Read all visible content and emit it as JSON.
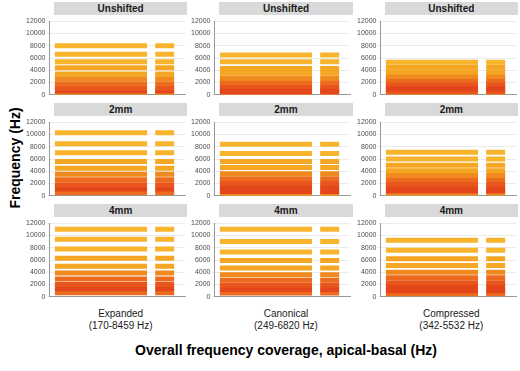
{
  "y_label": "Frequency (Hz)",
  "x_label": "Overall frequency coverage, apical-basal (Hz)",
  "column_labels": [
    [
      "Expanded",
      "(170-8459 Hz)"
    ],
    [
      "Canonical",
      "(249-6820 Hz)"
    ],
    [
      "Compressed",
      "(342-5532 Hz)"
    ]
  ],
  "chart_data": [
    {
      "type": "line",
      "title": "Unshifted",
      "xlim": [
        0,
        1
      ],
      "ylim": [
        0,
        12000
      ],
      "yticks": [
        0,
        2000,
        4000,
        6000,
        8000,
        10000,
        12000
      ],
      "grid": true,
      "tick_labels": "y",
      "x": [
        0.04,
        0.72,
        null,
        0.78,
        0.92
      ],
      "series": [
        {
          "color": "#f7b42c",
          "values": [
            8000,
            8000,
            null,
            8000,
            8000
          ]
        },
        {
          "color": "#f7b42c",
          "values": [
            6600,
            6600,
            null,
            6600,
            6600
          ]
        },
        {
          "color": "#f7b42c",
          "values": [
            5400,
            5400,
            null,
            5400,
            5400
          ]
        },
        {
          "color": "#f5a623",
          "values": [
            4400,
            4400,
            null,
            4400,
            4400
          ]
        },
        {
          "color": "#f5a623",
          "values": [
            3400,
            3400,
            null,
            3400,
            3400
          ]
        },
        {
          "color": "#f08a1e",
          "values": [
            2600,
            2600,
            null,
            2600,
            2600
          ]
        },
        {
          "color": "#ec6b1e",
          "values": [
            1800,
            1800,
            null,
            1800,
            1800
          ]
        },
        {
          "color": "#e8561d",
          "values": [
            1100,
            1100,
            null,
            1100,
            1100
          ]
        },
        {
          "color": "#e4461c",
          "values": [
            600,
            600,
            null,
            600,
            600
          ]
        },
        {
          "color": "#f08a1e",
          "values": [
            250,
            250,
            null,
            250,
            250
          ]
        }
      ]
    },
    {
      "type": "line",
      "title": "Unshifted",
      "xlim": [
        0,
        1
      ],
      "ylim": [
        0,
        12000
      ],
      "yticks": [
        0,
        2000,
        4000,
        6000,
        8000,
        10000,
        12000
      ],
      "grid": true,
      "tick_labels": "y",
      "x": [
        0.04,
        0.72,
        null,
        0.78,
        0.92
      ],
      "series": [
        {
          "color": "#f7b42c",
          "values": [
            6500,
            6500,
            null,
            6500,
            6500
          ]
        },
        {
          "color": "#f7b42c",
          "values": [
            5400,
            5400,
            null,
            5400,
            5400
          ]
        },
        {
          "color": "#f5a623",
          "values": [
            4300,
            4300,
            null,
            4300,
            4300
          ]
        },
        {
          "color": "#f5a623",
          "values": [
            3500,
            3500,
            null,
            3500,
            3500
          ]
        },
        {
          "color": "#f08a1e",
          "values": [
            2700,
            2700,
            null,
            2700,
            2700
          ]
        },
        {
          "color": "#ec6b1e",
          "values": [
            2000,
            2000,
            null,
            2000,
            2000
          ]
        },
        {
          "color": "#e8561d",
          "values": [
            1400,
            1400,
            null,
            1400,
            1400
          ]
        },
        {
          "color": "#e4461c",
          "values": [
            900,
            900,
            null,
            900,
            900
          ]
        },
        {
          "color": "#e4461c",
          "values": [
            500,
            500,
            null,
            500,
            500
          ]
        },
        {
          "color": "#f08a1e",
          "values": [
            250,
            250,
            null,
            250,
            250
          ]
        }
      ]
    },
    {
      "type": "line",
      "title": "Unshifted",
      "xlim": [
        0,
        1
      ],
      "ylim": [
        0,
        12000
      ],
      "yticks": [
        0,
        2000,
        4000,
        6000,
        8000,
        10000,
        12000
      ],
      "grid": true,
      "tick_labels": "y",
      "x": [
        0.04,
        0.72,
        null,
        0.78,
        0.92
      ],
      "series": [
        {
          "color": "#f7b42c",
          "values": [
            5300,
            5300,
            null,
            5300,
            5300
          ]
        },
        {
          "color": "#f5a623",
          "values": [
            4500,
            4500,
            null,
            4500,
            4500
          ]
        },
        {
          "color": "#f5a623",
          "values": [
            3700,
            3700,
            null,
            3700,
            3700
          ]
        },
        {
          "color": "#f08a1e",
          "values": [
            3000,
            3000,
            null,
            3000,
            3000
          ]
        },
        {
          "color": "#ec6b1e",
          "values": [
            2400,
            2400,
            null,
            2400,
            2400
          ]
        },
        {
          "color": "#e8561d",
          "values": [
            1800,
            1800,
            null,
            1800,
            1800
          ]
        },
        {
          "color": "#e4461c",
          "values": [
            1300,
            1300,
            null,
            1300,
            1300
          ]
        },
        {
          "color": "#e4461c",
          "values": [
            900,
            900,
            null,
            900,
            900
          ]
        },
        {
          "color": "#e8561d",
          "values": [
            550,
            550,
            null,
            550,
            550
          ]
        },
        {
          "color": "#f08a1e",
          "values": [
            300,
            300,
            null,
            300,
            300
          ]
        }
      ]
    },
    {
      "type": "line",
      "title": "2mm",
      "xlim": [
        0,
        1
      ],
      "ylim": [
        0,
        12000
      ],
      "yticks": [
        0,
        2000,
        4000,
        6000,
        8000,
        10000,
        12000
      ],
      "grid": true,
      "tick_labels": "y",
      "x": [
        0.04,
        0.72,
        null,
        0.78,
        0.92
      ],
      "series": [
        {
          "color": "#f7b42c",
          "values": [
            10300,
            10300,
            null,
            10300,
            10300
          ]
        },
        {
          "color": "#f7b42c",
          "values": [
            8500,
            8500,
            null,
            8500,
            8500
          ]
        },
        {
          "color": "#f7b42c",
          "values": [
            7000,
            7000,
            null,
            7000,
            7000
          ]
        },
        {
          "color": "#f5a623",
          "values": [
            5600,
            5600,
            null,
            5600,
            5600
          ]
        },
        {
          "color": "#f5a623",
          "values": [
            4500,
            4500,
            null,
            4500,
            4500
          ]
        },
        {
          "color": "#f08a1e",
          "values": [
            3500,
            3500,
            null,
            3500,
            3500
          ]
        },
        {
          "color": "#ec6b1e",
          "values": [
            2600,
            2600,
            null,
            2600,
            2600
          ]
        },
        {
          "color": "#e8561d",
          "values": [
            1800,
            1800,
            null,
            1800,
            1800
          ]
        },
        {
          "color": "#e4461c",
          "values": [
            1100,
            1100,
            null,
            1100,
            1100
          ]
        },
        {
          "color": "#ec6b1e",
          "values": [
            500,
            500,
            null,
            500,
            500
          ]
        }
      ]
    },
    {
      "type": "line",
      "title": "2mm",
      "xlim": [
        0,
        1
      ],
      "ylim": [
        0,
        12000
      ],
      "yticks": [
        0,
        2000,
        4000,
        6000,
        8000,
        10000,
        12000
      ],
      "grid": true,
      "tick_labels": "y",
      "x": [
        0.04,
        0.72,
        null,
        0.78,
        0.92
      ],
      "series": [
        {
          "color": "#f7b42c",
          "values": [
            8400,
            8400,
            null,
            8400,
            8400
          ]
        },
        {
          "color": "#f7b42c",
          "values": [
            6900,
            6900,
            null,
            6900,
            6900
          ]
        },
        {
          "color": "#f5a623",
          "values": [
            5600,
            5600,
            null,
            5600,
            5600
          ]
        },
        {
          "color": "#f5a623",
          "values": [
            4600,
            4600,
            null,
            4600,
            4600
          ]
        },
        {
          "color": "#f08a1e",
          "values": [
            3600,
            3600,
            null,
            3600,
            3600
          ]
        },
        {
          "color": "#ec6b1e",
          "values": [
            2800,
            2800,
            null,
            2800,
            2800
          ]
        },
        {
          "color": "#e8561d",
          "values": [
            2000,
            2000,
            null,
            2000,
            2000
          ]
        },
        {
          "color": "#e4461c",
          "values": [
            1300,
            1300,
            null,
            1300,
            1300
          ]
        },
        {
          "color": "#e4461c",
          "values": [
            700,
            700,
            null,
            700,
            700
          ]
        },
        {
          "color": "#f08a1e",
          "values": [
            350,
            350,
            null,
            350,
            350
          ]
        }
      ]
    },
    {
      "type": "line",
      "title": "2mm",
      "xlim": [
        0,
        1
      ],
      "ylim": [
        0,
        12000
      ],
      "yticks": [
        0,
        2000,
        4000,
        6000,
        8000,
        10000,
        12000
      ],
      "grid": true,
      "tick_labels": "y",
      "x": [
        0.04,
        0.72,
        null,
        0.78,
        0.92
      ],
      "series": [
        {
          "color": "#f7b42c",
          "values": [
            7100,
            7100,
            null,
            7100,
            7100
          ]
        },
        {
          "color": "#f7b42c",
          "values": [
            6000,
            6000,
            null,
            6000,
            6000
          ]
        },
        {
          "color": "#f5a623",
          "values": [
            5000,
            5000,
            null,
            5000,
            5000
          ]
        },
        {
          "color": "#f5a623",
          "values": [
            4100,
            4100,
            null,
            4100,
            4100
          ]
        },
        {
          "color": "#f08a1e",
          "values": [
            3300,
            3300,
            null,
            3300,
            3300
          ]
        },
        {
          "color": "#ec6b1e",
          "values": [
            2600,
            2600,
            null,
            2600,
            2600
          ]
        },
        {
          "color": "#e8561d",
          "values": [
            1900,
            1900,
            null,
            1900,
            1900
          ]
        },
        {
          "color": "#e4461c",
          "values": [
            1300,
            1300,
            null,
            1300,
            1300
          ]
        },
        {
          "color": "#e4461c",
          "values": [
            800,
            800,
            null,
            800,
            800
          ]
        },
        {
          "color": "#f08a1e",
          "values": [
            400,
            400,
            null,
            400,
            400
          ]
        }
      ]
    },
    {
      "type": "line",
      "title": "4mm",
      "xlim": [
        0,
        1
      ],
      "ylim": [
        0,
        12000
      ],
      "yticks": [
        0,
        2000,
        4000,
        6000,
        8000,
        10000,
        12000
      ],
      "grid": true,
      "tick_labels": "y",
      "x": [
        0.04,
        0.72,
        null,
        0.78,
        0.92
      ],
      "series": [
        {
          "color": "#f7b42c",
          "values": [
            11000,
            11000,
            null,
            11000,
            11000
          ]
        },
        {
          "color": "#f7b42c",
          "values": [
            9400,
            9400,
            null,
            9400,
            9400
          ]
        },
        {
          "color": "#f7b42c",
          "values": [
            7800,
            7800,
            null,
            7800,
            7800
          ]
        },
        {
          "color": "#f5a623",
          "values": [
            6300,
            6300,
            null,
            6300,
            6300
          ]
        },
        {
          "color": "#f5a623",
          "values": [
            5000,
            5000,
            null,
            5000,
            5000
          ]
        },
        {
          "color": "#f08a1e",
          "values": [
            3900,
            3900,
            null,
            3900,
            3900
          ]
        },
        {
          "color": "#ec6b1e",
          "values": [
            2900,
            2900,
            null,
            2900,
            2900
          ]
        },
        {
          "color": "#e8561d",
          "values": [
            2000,
            2000,
            null,
            2000,
            2000
          ]
        },
        {
          "color": "#e4461c",
          "values": [
            1300,
            1300,
            null,
            1300,
            1300
          ]
        },
        {
          "color": "#ec6b1e",
          "values": [
            650,
            650,
            null,
            650,
            650
          ]
        }
      ]
    },
    {
      "type": "line",
      "title": "4mm",
      "xlim": [
        0,
        1
      ],
      "ylim": [
        0,
        12000
      ],
      "yticks": [
        0,
        2000,
        4000,
        6000,
        8000,
        10000,
        12000
      ],
      "grid": true,
      "tick_labels": "y",
      "x": [
        0.04,
        0.72,
        null,
        0.78,
        0.92
      ],
      "series": [
        {
          "color": "#f7b42c",
          "values": [
            11000,
            11000,
            null,
            11000,
            11000
          ]
        },
        {
          "color": "#f7b42c",
          "values": [
            9000,
            9000,
            null,
            9000,
            9000
          ]
        },
        {
          "color": "#f7b42c",
          "values": [
            7300,
            7300,
            null,
            7300,
            7300
          ]
        },
        {
          "color": "#f5a623",
          "values": [
            5900,
            5900,
            null,
            5900,
            5900
          ]
        },
        {
          "color": "#f5a623",
          "values": [
            4700,
            4700,
            null,
            4700,
            4700
          ]
        },
        {
          "color": "#f08a1e",
          "values": [
            3600,
            3600,
            null,
            3600,
            3600
          ]
        },
        {
          "color": "#ec6b1e",
          "values": [
            2700,
            2700,
            null,
            2700,
            2700
          ]
        },
        {
          "color": "#e8561d",
          "values": [
            1900,
            1900,
            null,
            1900,
            1900
          ]
        },
        {
          "color": "#e4461c",
          "values": [
            1200,
            1200,
            null,
            1200,
            1200
          ]
        },
        {
          "color": "#ec6b1e",
          "values": [
            600,
            600,
            null,
            600,
            600
          ]
        }
      ]
    },
    {
      "type": "line",
      "title": "4mm",
      "xlim": [
        0,
        1
      ],
      "ylim": [
        0,
        12000
      ],
      "yticks": [
        0,
        2000,
        4000,
        6000,
        8000,
        10000,
        12000
      ],
      "grid": true,
      "tick_labels": "y",
      "x": [
        0.04,
        0.72,
        null,
        0.78,
        0.92
      ],
      "series": [
        {
          "color": "#f7b42c",
          "values": [
            9200,
            9200,
            null,
            9200,
            9200
          ]
        },
        {
          "color": "#f7b42c",
          "values": [
            7600,
            7600,
            null,
            7600,
            7600
          ]
        },
        {
          "color": "#f5a623",
          "values": [
            6200,
            6200,
            null,
            6200,
            6200
          ]
        },
        {
          "color": "#f5a623",
          "values": [
            5100,
            5100,
            null,
            5100,
            5100
          ]
        },
        {
          "color": "#f08a1e",
          "values": [
            4000,
            4000,
            null,
            4000,
            4000
          ]
        },
        {
          "color": "#ec6b1e",
          "values": [
            3100,
            3100,
            null,
            3100,
            3100
          ]
        },
        {
          "color": "#e8561d",
          "values": [
            2300,
            2300,
            null,
            2300,
            2300
          ]
        },
        {
          "color": "#e4461c",
          "values": [
            1600,
            1600,
            null,
            1600,
            1600
          ]
        },
        {
          "color": "#e4461c",
          "values": [
            1000,
            1000,
            null,
            1000,
            1000
          ]
        },
        {
          "color": "#ec6b1e",
          "values": [
            500,
            500,
            null,
            500,
            500
          ]
        }
      ]
    }
  ]
}
